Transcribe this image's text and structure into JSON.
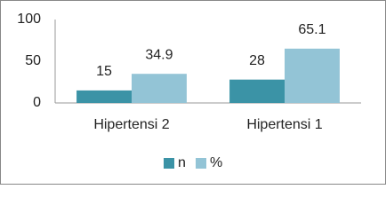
{
  "chart_data": {
    "type": "bar",
    "categories": [
      "Hipertensi 2",
      "Hipertensi 1"
    ],
    "series": [
      {
        "name": "n",
        "color": "#3b93a6",
        "values": [
          15,
          28
        ]
      },
      {
        "name": "%",
        "color": "#93c4d6",
        "values": [
          34.9,
          65.1
        ]
      }
    ],
    "ylim": [
      0,
      100
    ],
    "yticks": [
      0,
      50,
      100
    ],
    "grid": false,
    "legend": "bottom"
  }
}
